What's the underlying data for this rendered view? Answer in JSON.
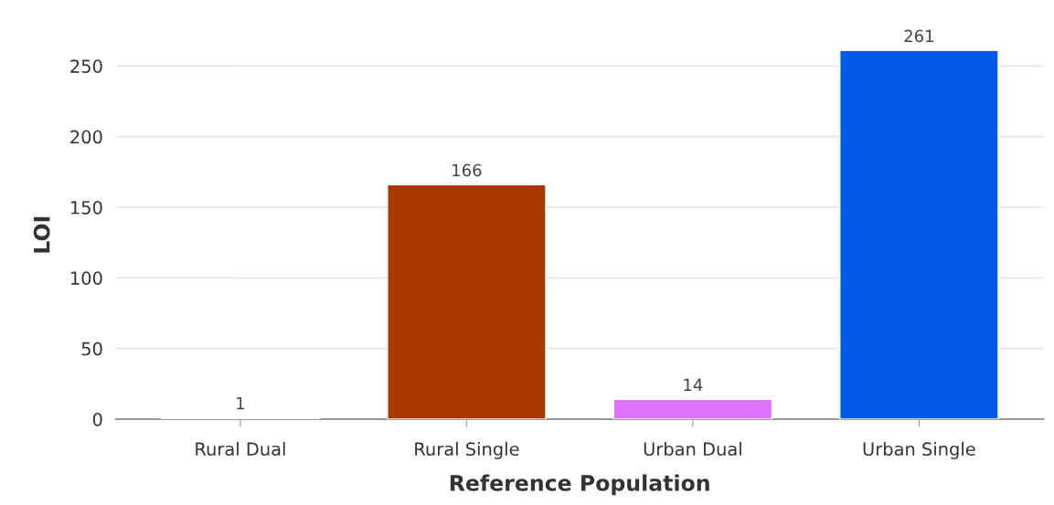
{
  "chart_data": {
    "type": "bar",
    "xlabel": "Reference Population",
    "ylabel": "LOI",
    "categories": [
      "Rural Dual",
      "Rural Single",
      "Urban Dual",
      "Urban Single"
    ],
    "values": [
      1,
      166,
      14,
      261
    ],
    "colors": [
      "#e317b0",
      "#a83800",
      "#df73ff",
      "#005ce6"
    ],
    "ylim": [
      0,
      261
    ],
    "yticks": [
      0,
      50,
      100,
      150,
      200,
      250
    ],
    "grid": "y",
    "data_labels": true
  }
}
